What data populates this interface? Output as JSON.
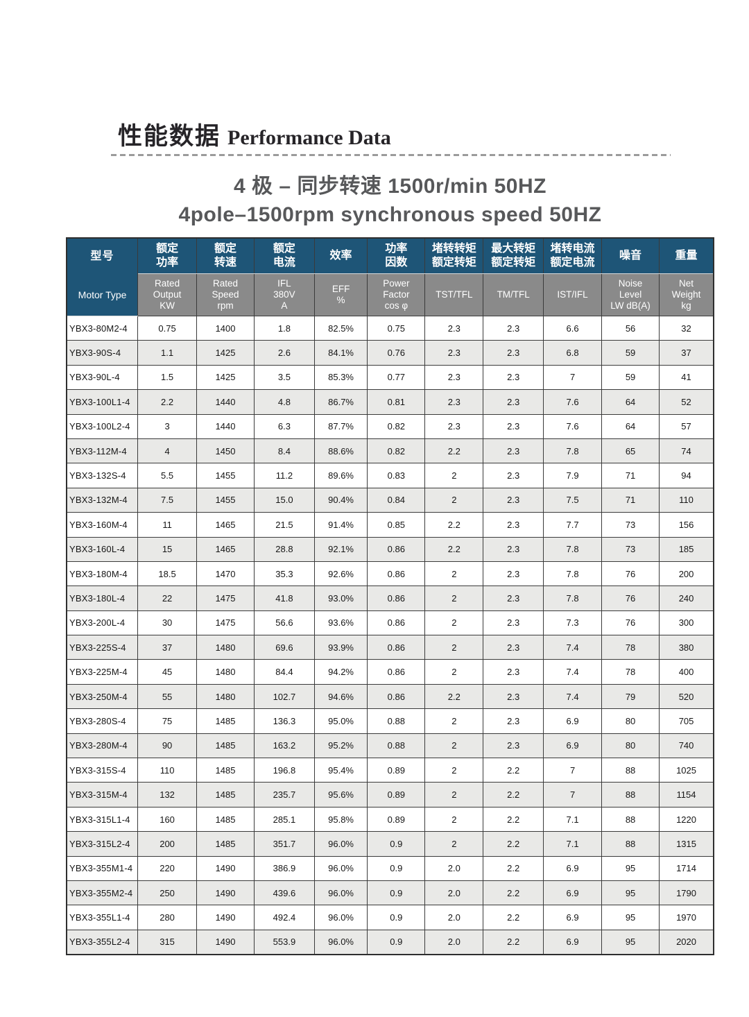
{
  "page": {
    "title_zh": "性能数据",
    "title_en": "Performance Data",
    "subtitle_zh": "4 极 – 同步转速 1500r/min 50HZ",
    "subtitle_en": "4pole–1500rpm synchronous speed 50HZ"
  },
  "colors": {
    "header_blue": "#1e5577",
    "header_gray": "#8a8a8a",
    "row_stripe": "#e9e9e7"
  },
  "table": {
    "columns": [
      {
        "zh": [
          "型号"
        ],
        "en": [
          "Motor Type"
        ]
      },
      {
        "zh": [
          "额定",
          "功率"
        ],
        "en": [
          "Rated",
          "Output",
          "KW"
        ]
      },
      {
        "zh": [
          "额定",
          "转速"
        ],
        "en": [
          "Rated",
          "Speed",
          "rpm"
        ]
      },
      {
        "zh": [
          "额定",
          "电流"
        ],
        "en": [
          "IFL",
          "380V",
          "A"
        ]
      },
      {
        "zh": [
          "效率"
        ],
        "en": [
          "EFF",
          "%"
        ]
      },
      {
        "zh": [
          "功率",
          "因数"
        ],
        "en": [
          "Power",
          "Factor",
          "cos φ"
        ]
      },
      {
        "zh": [
          "堵转转矩",
          "额定转矩"
        ],
        "en": [
          "TST/TFL"
        ]
      },
      {
        "zh": [
          "最大转矩",
          "额定转矩"
        ],
        "en": [
          "TM/TFL"
        ]
      },
      {
        "zh": [
          "堵转电流",
          "额定电流"
        ],
        "en": [
          "IST/IFL"
        ]
      },
      {
        "zh": [
          "噪音"
        ],
        "en": [
          "Noise",
          "Level",
          "LW dB(A)"
        ]
      },
      {
        "zh": [
          "重量"
        ],
        "en": [
          "Net",
          "Weight",
          "kg"
        ]
      }
    ],
    "rows": [
      [
        "YBX3-80M2-4",
        "0.75",
        "1400",
        "1.8",
        "82.5%",
        "0.75",
        "2.3",
        "2.3",
        "6.6",
        "56",
        "32"
      ],
      [
        "YBX3-90S-4",
        "1.1",
        "1425",
        "2.6",
        "84.1%",
        "0.76",
        "2.3",
        "2.3",
        "6.8",
        "59",
        "37"
      ],
      [
        "YBX3-90L-4",
        "1.5",
        "1425",
        "3.5",
        "85.3%",
        "0.77",
        "2.3",
        "2.3",
        "7",
        "59",
        "41"
      ],
      [
        "YBX3-100L1-4",
        "2.2",
        "1440",
        "4.8",
        "86.7%",
        "0.81",
        "2.3",
        "2.3",
        "7.6",
        "64",
        "52"
      ],
      [
        "YBX3-100L2-4",
        "3",
        "1440",
        "6.3",
        "87.7%",
        "0.82",
        "2.3",
        "2.3",
        "7.6",
        "64",
        "57"
      ],
      [
        "YBX3-112M-4",
        "4",
        "1450",
        "8.4",
        "88.6%",
        "0.82",
        "2.2",
        "2.3",
        "7.8",
        "65",
        "74"
      ],
      [
        "YBX3-132S-4",
        "5.5",
        "1455",
        "11.2",
        "89.6%",
        "0.83",
        "2",
        "2.3",
        "7.9",
        "71",
        "94"
      ],
      [
        "YBX3-132M-4",
        "7.5",
        "1455",
        "15.0",
        "90.4%",
        "0.84",
        "2",
        "2.3",
        "7.5",
        "71",
        "110"
      ],
      [
        "YBX3-160M-4",
        "11",
        "1465",
        "21.5",
        "91.4%",
        "0.85",
        "2.2",
        "2.3",
        "7.7",
        "73",
        "156"
      ],
      [
        "YBX3-160L-4",
        "15",
        "1465",
        "28.8",
        "92.1%",
        "0.86",
        "2.2",
        "2.3",
        "7.8",
        "73",
        "185"
      ],
      [
        "YBX3-180M-4",
        "18.5",
        "1470",
        "35.3",
        "92.6%",
        "0.86",
        "2",
        "2.3",
        "7.8",
        "76",
        "200"
      ],
      [
        "YBX3-180L-4",
        "22",
        "1475",
        "41.8",
        "93.0%",
        "0.86",
        "2",
        "2.3",
        "7.8",
        "76",
        "240"
      ],
      [
        "YBX3-200L-4",
        "30",
        "1475",
        "56.6",
        "93.6%",
        "0.86",
        "2",
        "2.3",
        "7.3",
        "76",
        "300"
      ],
      [
        "YBX3-225S-4",
        "37",
        "1480",
        "69.6",
        "93.9%",
        "0.86",
        "2",
        "2.3",
        "7.4",
        "78",
        "380"
      ],
      [
        "YBX3-225M-4",
        "45",
        "1480",
        "84.4",
        "94.2%",
        "0.86",
        "2",
        "2.3",
        "7.4",
        "78",
        "400"
      ],
      [
        "YBX3-250M-4",
        "55",
        "1480",
        "102.7",
        "94.6%",
        "0.86",
        "2.2",
        "2.3",
        "7.4",
        "79",
        "520"
      ],
      [
        "YBX3-280S-4",
        "75",
        "1485",
        "136.3",
        "95.0%",
        "0.88",
        "2",
        "2.3",
        "6.9",
        "80",
        "705"
      ],
      [
        "YBX3-280M-4",
        "90",
        "1485",
        "163.2",
        "95.2%",
        "0.88",
        "2",
        "2.3",
        "6.9",
        "80",
        "740"
      ],
      [
        "YBX3-315S-4",
        "110",
        "1485",
        "196.8",
        "95.4%",
        "0.89",
        "2",
        "2.2",
        "7",
        "88",
        "1025"
      ],
      [
        "YBX3-315M-4",
        "132",
        "1485",
        "235.7",
        "95.6%",
        "0.89",
        "2",
        "2.2",
        "7",
        "88",
        "1154"
      ],
      [
        "YBX3-315L1-4",
        "160",
        "1485",
        "285.1",
        "95.8%",
        "0.89",
        "2",
        "2.2",
        "7.1",
        "88",
        "1220"
      ],
      [
        "YBX3-315L2-4",
        "200",
        "1485",
        "351.7",
        "96.0%",
        "0.9",
        "2",
        "2.2",
        "7.1",
        "88",
        "1315"
      ],
      [
        "YBX3-355M1-4",
        "220",
        "1490",
        "386.9",
        "96.0%",
        "0.9",
        "2.0",
        "2.2",
        "6.9",
        "95",
        "1714"
      ],
      [
        "YBX3-355M2-4",
        "250",
        "1490",
        "439.6",
        "96.0%",
        "0.9",
        "2.0",
        "2.2",
        "6.9",
        "95",
        "1790"
      ],
      [
        "YBX3-355L1-4",
        "280",
        "1490",
        "492.4",
        "96.0%",
        "0.9",
        "2.0",
        "2.2",
        "6.9",
        "95",
        "1970"
      ],
      [
        "YBX3-355L2-4",
        "315",
        "1490",
        "553.9",
        "96.0%",
        "0.9",
        "2.0",
        "2.2",
        "6.9",
        "95",
        "2020"
      ]
    ]
  }
}
